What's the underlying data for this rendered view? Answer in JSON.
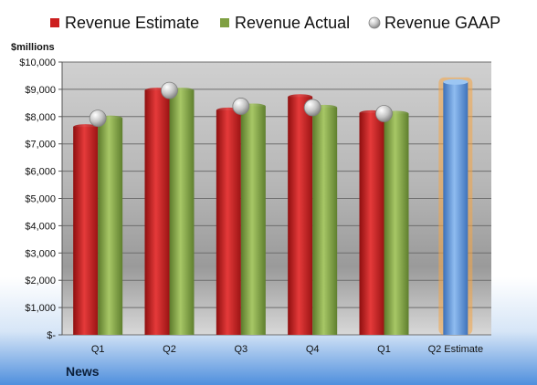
{
  "chart_data": {
    "type": "bar",
    "ylabel": "$millions",
    "footer_label": "News",
    "categories": [
      "Q1",
      "Q2",
      "Q3",
      "Q4",
      "Q1",
      "Q2 Estimate"
    ],
    "ylim": [
      0,
      10000
    ],
    "yticks": [
      0,
      1000,
      2000,
      3000,
      4000,
      5000,
      6000,
      7000,
      8000,
      9000,
      10000
    ],
    "ytick_labels": [
      "$-",
      "$1,000",
      "$2,000",
      "$3,000",
      "$4,000",
      "$5,000",
      "$6,000",
      "$7,000",
      "$8,000",
      "$9,000",
      "$10,000"
    ],
    "grid": true,
    "legend_position": "top",
    "series": [
      {
        "name": "Revenue Estimate",
        "kind": "bar",
        "color": "#cc1f1f",
        "values": [
          7620,
          8960,
          8230,
          8720,
          8130,
          null
        ]
      },
      {
        "name": "Revenue Actual",
        "kind": "bar",
        "color": "#7fa042",
        "values": [
          7940,
          8960,
          8380,
          8330,
          8110,
          null
        ]
      },
      {
        "name": "Revenue GAAP",
        "kind": "marker",
        "color": "#b8b8b8",
        "values": [
          7940,
          8960,
          8380,
          8330,
          8110,
          null
        ]
      },
      {
        "name": "Q2 Estimate",
        "kind": "highlight-bar",
        "color": "#5f93d4",
        "values": [
          null,
          null,
          null,
          null,
          null,
          9270
        ]
      }
    ]
  }
}
